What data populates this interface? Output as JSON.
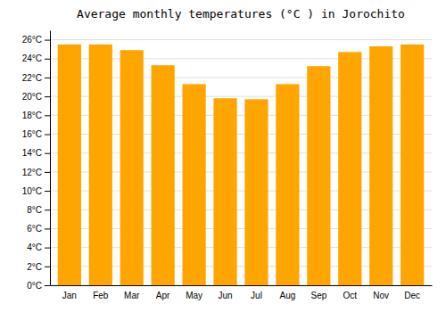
{
  "chart_data": {
    "type": "bar",
    "title": "Average monthly temperatures (°C ) in Jorochito",
    "categories": [
      "Jan",
      "Feb",
      "Mar",
      "Apr",
      "May",
      "Jun",
      "Jul",
      "Aug",
      "Sep",
      "Oct",
      "Nov",
      "Dec"
    ],
    "values": [
      25.5,
      25.5,
      24.9,
      23.3,
      21.3,
      19.8,
      19.7,
      21.3,
      23.2,
      24.7,
      25.3,
      25.5
    ],
    "color": "#FFA500",
    "ylim": [
      0,
      27
    ],
    "yticks": [
      {
        "value": 0,
        "label": "0°C"
      },
      {
        "value": 2,
        "label": "2°C"
      },
      {
        "value": 4,
        "label": "4°C"
      },
      {
        "value": 6,
        "label": "6°C"
      },
      {
        "value": 8,
        "label": "8°C"
      },
      {
        "value": 10,
        "label": "10°C"
      },
      {
        "value": 12,
        "label": "12°C"
      },
      {
        "value": 14,
        "label": "14°C"
      },
      {
        "value": 16,
        "label": "16°C"
      },
      {
        "value": 18,
        "label": "18°C"
      },
      {
        "value": 20,
        "label": "20°C"
      },
      {
        "value": 22,
        "label": "22°C"
      },
      {
        "value": 24,
        "label": "24°C"
      },
      {
        "value": 26,
        "label": "26°C"
      }
    ],
    "grid": true
  }
}
